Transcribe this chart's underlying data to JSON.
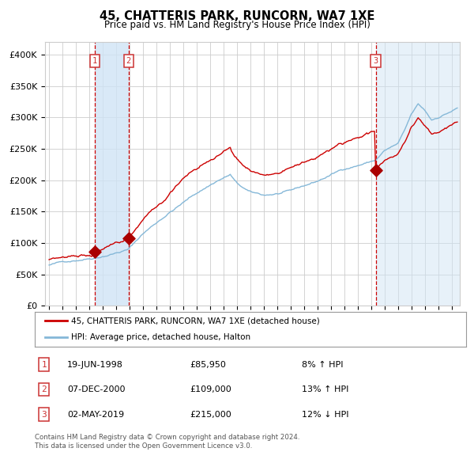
{
  "title": "45, CHATTERIS PARK, RUNCORN, WA7 1XE",
  "subtitle": "Price paid vs. HM Land Registry's House Price Index (HPI)",
  "legend_line1": "45, CHATTERIS PARK, RUNCORN, WA7 1XE (detached house)",
  "legend_line2": "HPI: Average price, detached house, Halton",
  "transactions": [
    {
      "num": 1,
      "date": "19-JUN-1998",
      "price": 85950,
      "pct": "8%",
      "dir": "↑"
    },
    {
      "num": 2,
      "date": "07-DEC-2000",
      "price": 109000,
      "pct": "13%",
      "dir": "↑"
    },
    {
      "num": 3,
      "date": "02-MAY-2019",
      "price": 215000,
      "pct": "12%",
      "dir": "↓"
    }
  ],
  "footer1": "Contains HM Land Registry data © Crown copyright and database right 2024.",
  "footer2": "This data is licensed under the Open Government Licence v3.0.",
  "ylim": [
    0,
    420000
  ],
  "yticks": [
    0,
    50000,
    100000,
    150000,
    200000,
    250000,
    300000,
    350000,
    400000
  ],
  "hpi_color": "#85b8d8",
  "price_color": "#cc0000",
  "dot_color": "#aa0000",
  "vline_color": "#cc0000",
  "shade_color": "#d0e4f5",
  "grid_color": "#cccccc",
  "bg_color": "#ffffff",
  "box_color": "#cc3333",
  "xlim_left": 1994.7,
  "xlim_right": 2025.6
}
